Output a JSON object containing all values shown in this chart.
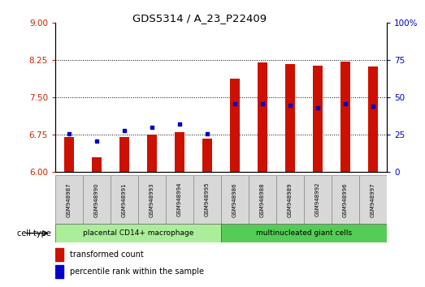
{
  "title": "GDS5314 / A_23_P22409",
  "samples": [
    "GSM948987",
    "GSM948990",
    "GSM948991",
    "GSM948993",
    "GSM948994",
    "GSM948995",
    "GSM948986",
    "GSM948988",
    "GSM948989",
    "GSM948992",
    "GSM948996",
    "GSM948997"
  ],
  "transformed_count": [
    6.7,
    6.3,
    6.7,
    6.75,
    6.8,
    6.68,
    7.88,
    8.2,
    8.17,
    8.14,
    8.22,
    8.13
  ],
  "percentile_rank": [
    26,
    21,
    28,
    30,
    32,
    26,
    46,
    46,
    45,
    43,
    46,
    44
  ],
  "groups": [
    {
      "label": "placental CD14+ macrophage",
      "start": 0,
      "end": 6,
      "color": "#aaee99"
    },
    {
      "label": "multinucleated giant cells",
      "start": 6,
      "end": 12,
      "color": "#55cc55"
    }
  ],
  "ylim_left": [
    6,
    9
  ],
  "ylim_right": [
    0,
    100
  ],
  "yticks_left": [
    6,
    6.75,
    7.5,
    8.25,
    9
  ],
  "yticks_right": [
    0,
    25,
    50,
    75,
    100
  ],
  "bar_color": "#cc1100",
  "dot_color": "#0000cc",
  "bg_color": "#d8d8d8",
  "plot_bg": "#ffffff",
  "left_label_color": "#cc2200",
  "right_label_color": "#0000cc",
  "legend_items": [
    "transformed count",
    "percentile rank within the sample"
  ],
  "cell_type_label": "cell type",
  "bar_bottom": 6.0,
  "bar_width": 0.35,
  "ymin": 6,
  "ymax": 9,
  "pct_min": 0,
  "pct_max": 100
}
